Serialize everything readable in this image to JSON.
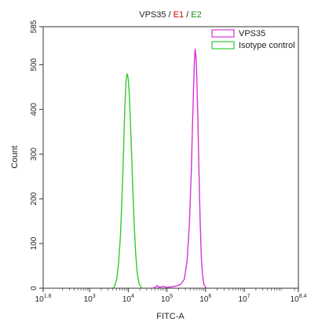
{
  "chart_data": {
    "type": "line",
    "title_parts": [
      {
        "text": "VPS35",
        "color": "#222222"
      },
      {
        "text": " / ",
        "color": "#222222"
      },
      {
        "text": "E1",
        "color": "#cc0000"
      },
      {
        "text": " / ",
        "color": "#222222"
      },
      {
        "text": "E2",
        "color": "#1a8a1a"
      }
    ],
    "xlabel": "FITC-A",
    "ylabel": "Count",
    "x_scale": "log",
    "xlim_exp": [
      1.8,
      8.4
    ],
    "ylim": [
      0,
      585
    ],
    "x_ticks": [
      {
        "exp": 1.8,
        "base": "10",
        "sup": "1.8"
      },
      {
        "exp": 3,
        "base": "10",
        "sup": "3"
      },
      {
        "exp": 4,
        "base": "10",
        "sup": "4"
      },
      {
        "exp": 5,
        "base": "10",
        "sup": "5"
      },
      {
        "exp": 6,
        "base": "10",
        "sup": "6"
      },
      {
        "exp": 7,
        "base": "10",
        "sup": "7"
      },
      {
        "exp": 8.4,
        "base": "10",
        "sup": "8.4"
      }
    ],
    "y_ticks": [
      0,
      100,
      200,
      300,
      400,
      500,
      585
    ],
    "legend_position": "top-right",
    "grid": false,
    "series": [
      {
        "name": "VPS35",
        "color": "#d633d6",
        "points": [
          [
            4.6,
            0
          ],
          [
            4.7,
            2
          ],
          [
            4.75,
            6
          ],
          [
            4.8,
            2
          ],
          [
            4.9,
            4
          ],
          [
            5.0,
            2
          ],
          [
            5.2,
            4
          ],
          [
            5.35,
            8
          ],
          [
            5.45,
            20
          ],
          [
            5.52,
            60
          ],
          [
            5.58,
            140
          ],
          [
            5.63,
            260
          ],
          [
            5.66,
            360
          ],
          [
            5.69,
            450
          ],
          [
            5.71,
            505
          ],
          [
            5.73,
            535
          ],
          [
            5.75,
            520
          ],
          [
            5.77,
            480
          ],
          [
            5.8,
            380
          ],
          [
            5.83,
            260
          ],
          [
            5.86,
            150
          ],
          [
            5.89,
            70
          ],
          [
            5.92,
            30
          ],
          [
            5.96,
            8
          ],
          [
            6.02,
            0
          ]
        ]
      },
      {
        "name": "Isotype control",
        "color": "#33cc33",
        "points": [
          [
            3.6,
            0
          ],
          [
            3.65,
            5
          ],
          [
            3.7,
            20
          ],
          [
            3.75,
            55
          ],
          [
            3.8,
            120
          ],
          [
            3.84,
            210
          ],
          [
            3.88,
            310
          ],
          [
            3.91,
            400
          ],
          [
            3.94,
            460
          ],
          [
            3.97,
            480
          ],
          [
            4.0,
            470
          ],
          [
            4.03,
            430
          ],
          [
            4.07,
            340
          ],
          [
            4.11,
            240
          ],
          [
            4.15,
            150
          ],
          [
            4.19,
            80
          ],
          [
            4.23,
            35
          ],
          [
            4.28,
            10
          ],
          [
            4.35,
            0
          ]
        ]
      }
    ]
  }
}
